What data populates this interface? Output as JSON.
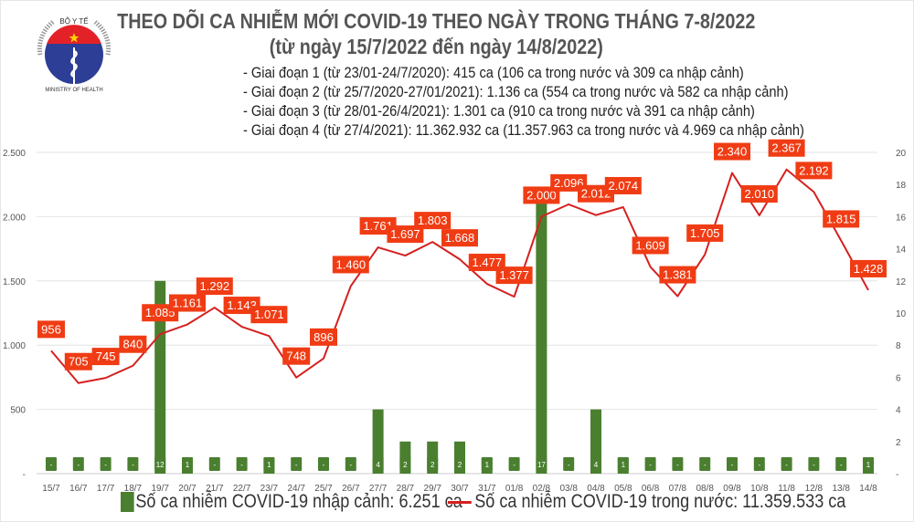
{
  "header": {
    "title": "THEO DÕI CA NHIỄM MỚI COVID-19 THEO NGÀY TRONG THÁNG 7-8/2022",
    "subtitle": "(từ ngày 15/7/2022 đến ngày 14/8/2022)",
    "logo_text": [
      "BỘ Y TẾ",
      "MINISTRY OF HEALTH"
    ],
    "notes": [
      "- Giai đoạn 1 (từ 23/01-24/7/2020): 415 ca (106 ca trong nước và 309 ca nhập cảnh)",
      "- Giai đoạn 2 (từ 25/7/2020-27/01/2021): 1.136 ca (554 ca trong nước và 582 ca nhập cảnh)",
      "- Giai đoạn 3 (từ 28/01-26/4/2021): 1.301 ca (910 ca trong nước và 391 ca nhập cảnh)",
      "- Giai đoạn 4 (từ 27/4/2021): 11.362.932 ca (11.357.963 ca trong nước và 4.969 ca nhập cảnh)"
    ]
  },
  "chart_data": {
    "type": "bar+line",
    "categories": [
      "15/7",
      "16/7",
      "17/7",
      "18/7",
      "19/7",
      "20/7",
      "21/7",
      "22/7",
      "23/7",
      "24/7",
      "25/7",
      "26/7",
      "27/7",
      "28/7",
      "29/7",
      "30/7",
      "31/7",
      "01/8",
      "02/8",
      "03/8",
      "04/8",
      "05/8",
      "06/8",
      "07/8",
      "08/8",
      "09/8",
      "10/8",
      "11/8",
      "12/8",
      "13/8",
      "14/8"
    ],
    "series": [
      {
        "name": "Số ca nhiễm COVID-19 nhập cảnh: 6.251 ca",
        "type": "bar",
        "axis": "right",
        "color": "#4a7f30",
        "values": [
          0,
          0,
          0,
          0,
          12,
          1,
          0,
          0,
          1,
          0,
          0,
          0,
          4,
          2,
          2,
          2,
          1,
          0,
          17,
          0,
          4,
          1,
          0,
          0,
          0,
          0,
          0,
          0,
          0,
          0,
          1
        ]
      },
      {
        "name": "Số ca nhiễm COVID-19 trong nước: 11.359.533 ca",
        "type": "line",
        "axis": "left",
        "color": "#d62020",
        "label_color": "#f03c14",
        "values": [
          956,
          705,
          745,
          840,
          1085,
          1161,
          1292,
          1143,
          1071,
          748,
          896,
          1460,
          1761,
          1697,
          1803,
          1668,
          1477,
          1377,
          2000,
          2096,
          2012,
          2074,
          1609,
          1381,
          1705,
          2340,
          2010,
          2367,
          2192,
          1815,
          1428
        ]
      }
    ],
    "left_axis": {
      "range": [
        0,
        2500
      ],
      "ticks": [
        "-",
        "500",
        "1.000",
        "1.500",
        "2.000",
        "2.500"
      ]
    },
    "right_axis": {
      "range": [
        0,
        20
      ],
      "ticks": [
        "-",
        "2",
        "4",
        "6",
        "8",
        "10",
        "12",
        "14",
        "16",
        "18",
        "20"
      ]
    },
    "grid": true,
    "legend_position": "bottom"
  }
}
